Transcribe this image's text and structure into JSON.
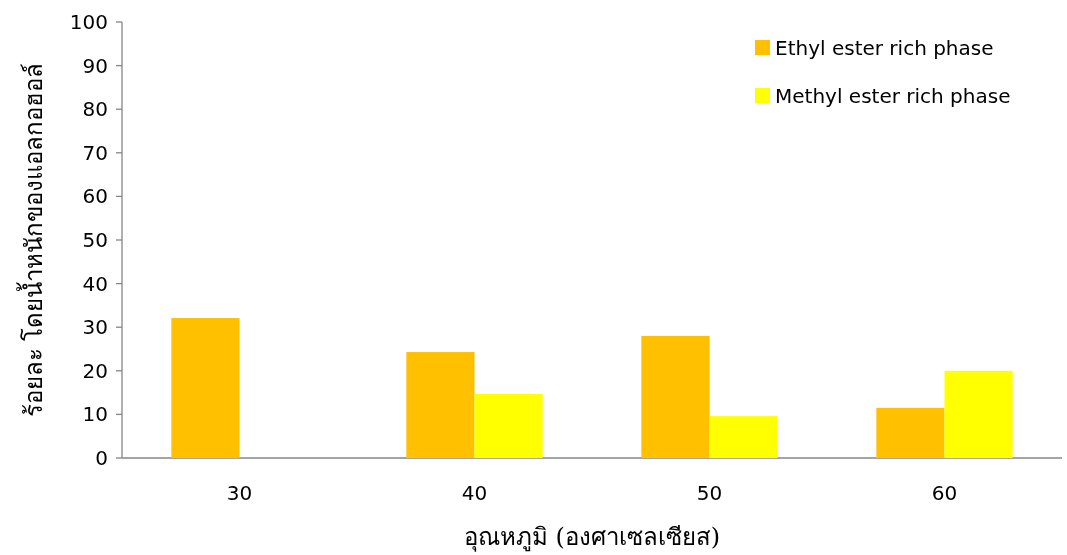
{
  "chart_data": {
    "type": "bar",
    "xlabel": "อุณหภูมิ (องศาเซลเซียส)",
    "ylabel": "ร้อยละ โดยน้ำหนักของแอลกอฮอล์",
    "categories": [
      "30",
      "40",
      "50",
      "60"
    ],
    "series": [
      {
        "name": "Ethyl ester rich phase",
        "color": "#ffc000",
        "values": [
          32.1,
          24.3,
          28.0,
          11.5
        ]
      },
      {
        "name": "Methyl ester rich phase",
        "color": "#ffff00",
        "values": [
          null,
          14.7,
          9.6,
          20.0
        ]
      }
    ],
    "ylim": [
      0,
      100
    ],
    "yticks": [
      0,
      10,
      20,
      30,
      40,
      50,
      60,
      70,
      80,
      90,
      100
    ],
    "grid": false,
    "legend": "top right"
  }
}
